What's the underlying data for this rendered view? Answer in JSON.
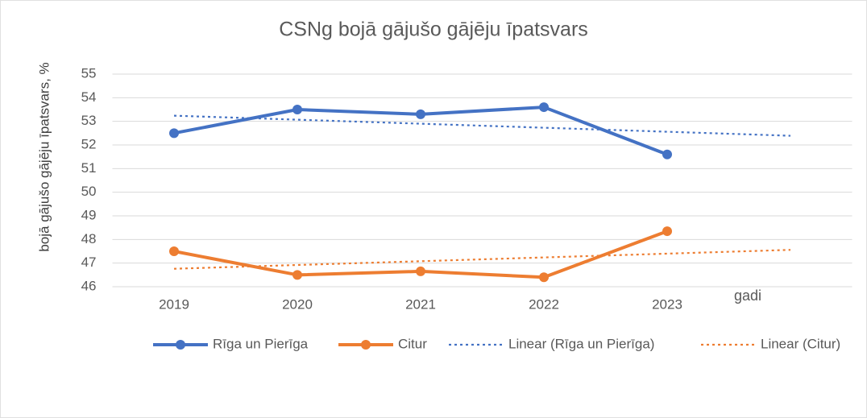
{
  "chart_data": {
    "type": "line",
    "title": "CSNg bojā gājušo gājēju īpatsvars",
    "ylabel": "bojā gājušo gājēju īpatsvars, %",
    "xlabel": "gadi",
    "categories": [
      "2019",
      "2020",
      "2021",
      "2022",
      "2023",
      null
    ],
    "series": [
      {
        "name": "Rīga un Pierīga",
        "color": "#4472c4",
        "markers": true,
        "dashed": false,
        "values": [
          52.5,
          53.5,
          53.3,
          53.6,
          51.6,
          null
        ]
      },
      {
        "name": "Citur",
        "color": "#ed7d31",
        "markers": true,
        "dashed": false,
        "values": [
          47.5,
          46.5,
          46.65,
          46.4,
          48.35,
          null
        ]
      },
      {
        "name": "Linear (Rīga un Pierīga)",
        "color": "#4472c4",
        "markers": false,
        "dashed": true,
        "values": [
          53.24,
          53.07,
          52.9,
          52.73,
          52.56,
          52.39
        ]
      },
      {
        "name": "Linear (Citur)",
        "color": "#ed7d31",
        "markers": false,
        "dashed": true,
        "values": [
          46.76,
          46.92,
          47.08,
          47.24,
          47.4,
          47.56
        ]
      }
    ],
    "ylim": [
      46,
      55
    ],
    "yticks": [
      46,
      47,
      48,
      49,
      50,
      51,
      52,
      53,
      54,
      55
    ],
    "grid": true,
    "legend": "bottom"
  }
}
